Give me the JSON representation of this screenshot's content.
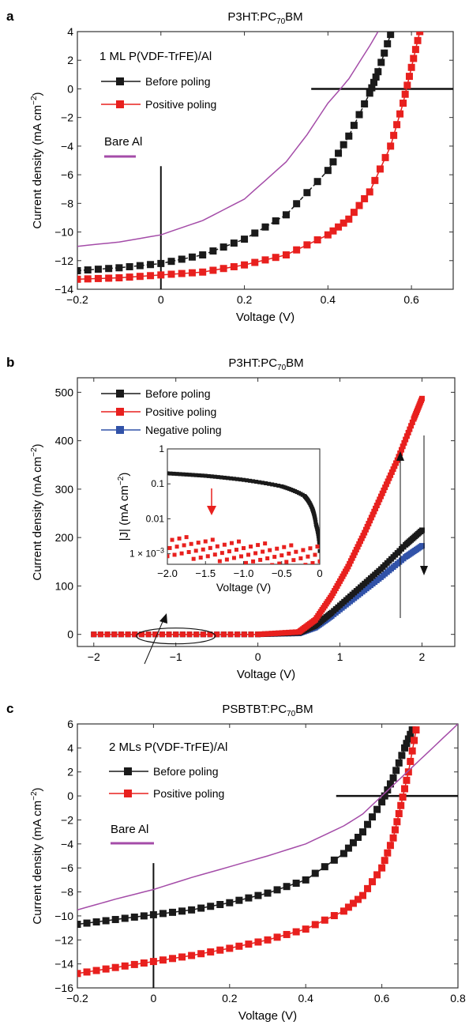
{
  "chart_data": [
    {
      "panel_label": "a",
      "type": "line",
      "title_parts": [
        "P3HT:PC",
        "70",
        "BM"
      ],
      "xlabel": "Voltage (V)",
      "ylabel": "Current density (mA cm−2)",
      "xlim": [
        -0.2,
        0.7
      ],
      "ylim": [
        -14,
        4
      ],
      "xticks": [
        -0.2,
        0,
        0.2,
        0.4,
        0.6
      ],
      "xtick_labels": [
        "−0.2",
        "0",
        "0.2",
        "0.4",
        "0.6"
      ],
      "yticks": [
        -14,
        -12,
        -10,
        -8,
        -6,
        -4,
        -2,
        0,
        2,
        4
      ],
      "ytick_labels": [
        "−14",
        "−12",
        "−10",
        "−8",
        "−6",
        "−4",
        "−2",
        "0",
        "2",
        "4"
      ],
      "annotation": "1 ML P(VDF-TrFE)/Al",
      "grid": false,
      "legend_position": "top-left",
      "series": [
        {
          "name": "Before poling",
          "color": "#1a1a1a",
          "marker": "square",
          "dashed": true,
          "x": [
            -0.2,
            -0.1,
            0,
            0.1,
            0.2,
            0.3,
            0.4,
            0.45,
            0.5,
            0.52,
            0.55
          ],
          "y": [
            -12.7,
            -12.5,
            -12.2,
            -11.6,
            -10.5,
            -8.8,
            -5.7,
            -3.3,
            -0.3,
            1.2,
            3.8
          ]
        },
        {
          "name": "Positive poling",
          "color": "#e8201e",
          "marker": "square",
          "dashed": false,
          "x": [
            -0.2,
            -0.1,
            0,
            0.1,
            0.2,
            0.3,
            0.4,
            0.45,
            0.5,
            0.55,
            0.58,
            0.6,
            0.62
          ],
          "y": [
            -13.3,
            -13.2,
            -13.0,
            -12.8,
            -12.3,
            -11.6,
            -10.2,
            -9.1,
            -7.2,
            -4.0,
            -1.0,
            1.5,
            4.0
          ]
        },
        {
          "name": "Bare Al",
          "color": "#a44ca8",
          "marker": "none",
          "dashed": false,
          "x": [
            -0.2,
            -0.1,
            0,
            0.1,
            0.2,
            0.3,
            0.35,
            0.4,
            0.43,
            0.45,
            0.5,
            0.52
          ],
          "y": [
            -11.0,
            -10.7,
            -10.2,
            -9.2,
            -7.7,
            -5.1,
            -3.2,
            -1.0,
            0,
            0.7,
            3.0,
            4.0
          ]
        }
      ],
      "reference_lines": [
        {
          "orientation": "vertical",
          "x": 0,
          "y_from": -14,
          "y_to": -5.4
        },
        {
          "orientation": "horizontal",
          "y": 0,
          "x_from": 0.36,
          "x_to": 0.7
        }
      ]
    },
    {
      "panel_label": "b",
      "type": "line",
      "title_parts": [
        "P3HT:PC",
        "70",
        "BM"
      ],
      "xlabel": "Voltage (V)",
      "ylabel": "Current density (mA cm−2)",
      "xlim": [
        -2.2,
        2.4
      ],
      "ylim": [
        -25,
        530
      ],
      "xticks": [
        -2,
        -1,
        0,
        1,
        2
      ],
      "xtick_labels": [
        "−2",
        "−1",
        "0",
        "1",
        "2"
      ],
      "yticks": [
        0,
        100,
        200,
        300,
        400,
        500
      ],
      "ytick_labels": [
        "0",
        "100",
        "200",
        "300",
        "400",
        "500"
      ],
      "grid": false,
      "legend_position": "top-left",
      "series": [
        {
          "name": "Before poling",
          "color": "#1a1a1a",
          "marker": "square",
          "x": [
            -2,
            -1,
            0,
            0.5,
            0.7,
            0.9,
            1.2,
            1.5,
            1.8,
            2.0
          ],
          "y": [
            0,
            0,
            0,
            3,
            18,
            45,
            90,
            135,
            185,
            215
          ]
        },
        {
          "name": "Positive poling",
          "color": "#e8201e",
          "marker": "square",
          "x": [
            -2,
            -1,
            0,
            0.5,
            0.7,
            0.9,
            1.1,
            1.3,
            1.5,
            1.7,
            1.9,
            2.0
          ],
          "y": [
            0,
            0,
            0,
            5,
            30,
            80,
            140,
            210,
            285,
            360,
            445,
            487
          ]
        },
        {
          "name": "Negative poling",
          "color": "#3152a8",
          "marker": "square",
          "x": [
            -2,
            -1,
            0,
            0.5,
            0.7,
            0.9,
            1.2,
            1.5,
            1.8,
            2.0
          ],
          "y": [
            0,
            0,
            0,
            2,
            14,
            38,
            78,
            118,
            160,
            183
          ]
        }
      ],
      "inset": {
        "xlabel": "Voltage (V)",
        "ylabel": "|J| (mA cm−2)",
        "xlim": [
          -2.0,
          0
        ],
        "xticks": [
          -2.0,
          -1.5,
          -1.0,
          -0.5,
          0
        ],
        "xtick_labels": [
          "−2.0",
          "−1.5",
          "−1.0",
          "−0.5",
          "0"
        ],
        "yscale": "log",
        "ylim": [
          0.0005,
          1
        ],
        "yticks": [
          0.001,
          0.01,
          0.1,
          1
        ],
        "ytick_labels": [
          "1 × 10−3",
          "0.01",
          "0.1",
          "1"
        ],
        "series": [
          {
            "name": "Before poling",
            "color": "#1a1a1a",
            "x": [
              -2.0,
              -1.5,
              -1.0,
              -0.5,
              -0.2,
              -0.1,
              -0.05,
              0
            ],
            "y": [
              0.2,
              0.17,
              0.13,
              0.085,
              0.045,
              0.02,
              0.007,
              0.0012
            ]
          },
          {
            "name": "Positive poling",
            "color": "#e8201e",
            "x": [
              -2.0,
              -1.5,
              -1.0,
              -0.5,
              0
            ],
            "y": [
              0.0017,
              0.0013,
              0.0011,
              0.0009,
              0.0008
            ]
          }
        ]
      }
    },
    {
      "panel_label": "c",
      "type": "line",
      "title_parts": [
        "PSBTBT:PC",
        "70",
        "BM"
      ],
      "xlabel": "Voltage (V)",
      "ylabel": "Current density (mA cm−2)",
      "xlim": [
        -0.2,
        0.8
      ],
      "ylim": [
        -16,
        6
      ],
      "xticks": [
        -0.2,
        0,
        0.2,
        0.4,
        0.6,
        0.8
      ],
      "xtick_labels": [
        "−0.2",
        "0",
        "0.2",
        "0.4",
        "0.6",
        "0.8"
      ],
      "yticks": [
        -16,
        -14,
        -12,
        -10,
        -8,
        -6,
        -4,
        -2,
        0,
        2,
        4,
        6
      ],
      "ytick_labels": [
        "−16",
        "−14",
        "−12",
        "−10",
        "−8",
        "−6",
        "−4",
        "−2",
        "0",
        "2",
        "4",
        "6"
      ],
      "annotation": "2 MLs P(VDF-TrFE)/Al",
      "grid": false,
      "legend_position": "top-left",
      "series": [
        {
          "name": "Before poling",
          "color": "#1a1a1a",
          "marker": "square",
          "dashed": false,
          "x": [
            -0.2,
            -0.1,
            0,
            0.1,
            0.2,
            0.3,
            0.4,
            0.5,
            0.55,
            0.6,
            0.63,
            0.66,
            0.68
          ],
          "y": [
            -10.7,
            -10.3,
            -9.9,
            -9.5,
            -8.9,
            -8.1,
            -7.0,
            -4.8,
            -3.0,
            -0.5,
            1.5,
            4.0,
            5.5
          ]
        },
        {
          "name": "Positive poling",
          "color": "#e8201e",
          "marker": "square",
          "dashed": false,
          "x": [
            -0.2,
            -0.1,
            0,
            0.1,
            0.2,
            0.3,
            0.4,
            0.5,
            0.55,
            0.6,
            0.63,
            0.65,
            0.67,
            0.69
          ],
          "y": [
            -14.8,
            -14.3,
            -13.8,
            -13.3,
            -12.7,
            -12.0,
            -11.1,
            -9.6,
            -8.3,
            -6.0,
            -3.5,
            -0.8,
            2.0,
            5.5
          ]
        },
        {
          "name": "Bare Al",
          "color": "#a44ca8",
          "marker": "none",
          "dashed": false,
          "x": [
            -0.2,
            -0.1,
            0,
            0.1,
            0.2,
            0.3,
            0.4,
            0.5,
            0.55,
            0.6,
            0.65,
            0.7,
            0.75,
            0.8
          ],
          "y": [
            -9.5,
            -8.6,
            -7.8,
            -6.8,
            -5.9,
            -5.0,
            -4.0,
            -2.5,
            -1.5,
            0,
            1.5,
            3.0,
            4.5,
            6.0
          ]
        }
      ],
      "reference_lines": [
        {
          "orientation": "vertical",
          "x": 0,
          "y_from": -16,
          "y_to": -5.6
        },
        {
          "orientation": "horizontal",
          "y": 0,
          "x_from": 0.48,
          "x_to": 0.8
        }
      ]
    }
  ]
}
